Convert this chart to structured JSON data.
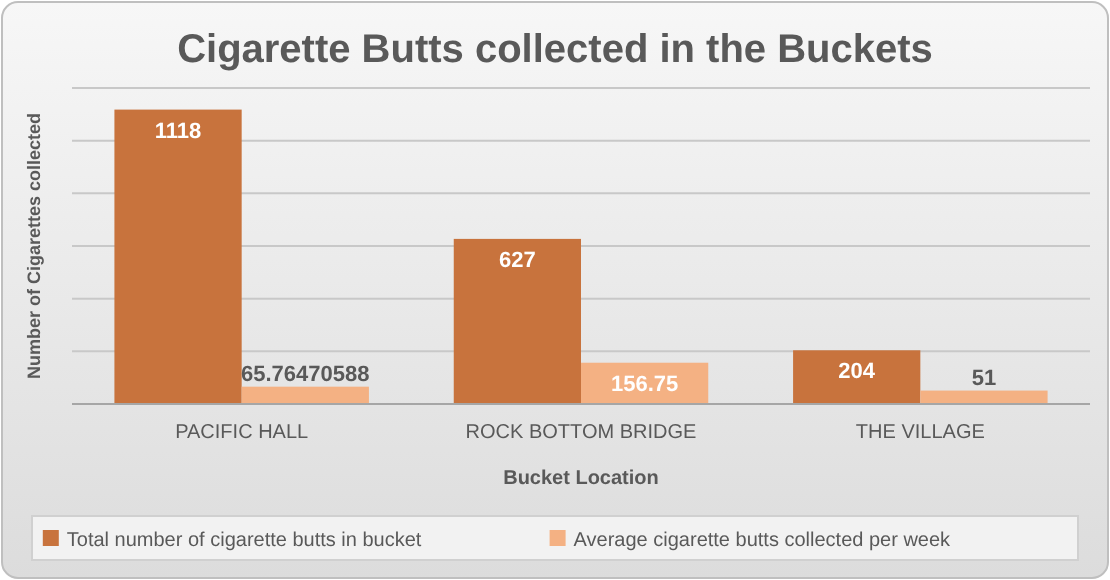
{
  "chart_data": {
    "type": "bar",
    "title": "Cigarette Butts collected in the Buckets",
    "xlabel": "Bucket Location",
    "ylabel": "Number of Cigarettes collected",
    "categories": [
      "PACIFIC HALL",
      "ROCK BOTTOM BRIDGE",
      "THE VILLAGE"
    ],
    "series": [
      {
        "name": "Total number of cigarette butts in bucket",
        "color": "#c8733d",
        "values": [
          1118,
          627,
          204
        ]
      },
      {
        "name": "Average cigarette butts collected per week",
        "color": "#f4b183",
        "values": [
          65.76470588,
          156.75,
          51
        ]
      }
    ],
    "ylim": [
      0,
      1200
    ],
    "yticks": [
      {
        "value": 0,
        "label": null
      },
      {
        "value": 200,
        "label": null
      },
      {
        "value": 400,
        "label": null
      },
      {
        "value": 600,
        "label": null
      },
      {
        "value": 800,
        "label": null
      },
      {
        "value": 1000,
        "label": null
      },
      {
        "value": 1200,
        "label": null
      }
    ],
    "grid": "y",
    "data_labels": true,
    "legend": "bottom",
    "tick_labels": "x"
  }
}
